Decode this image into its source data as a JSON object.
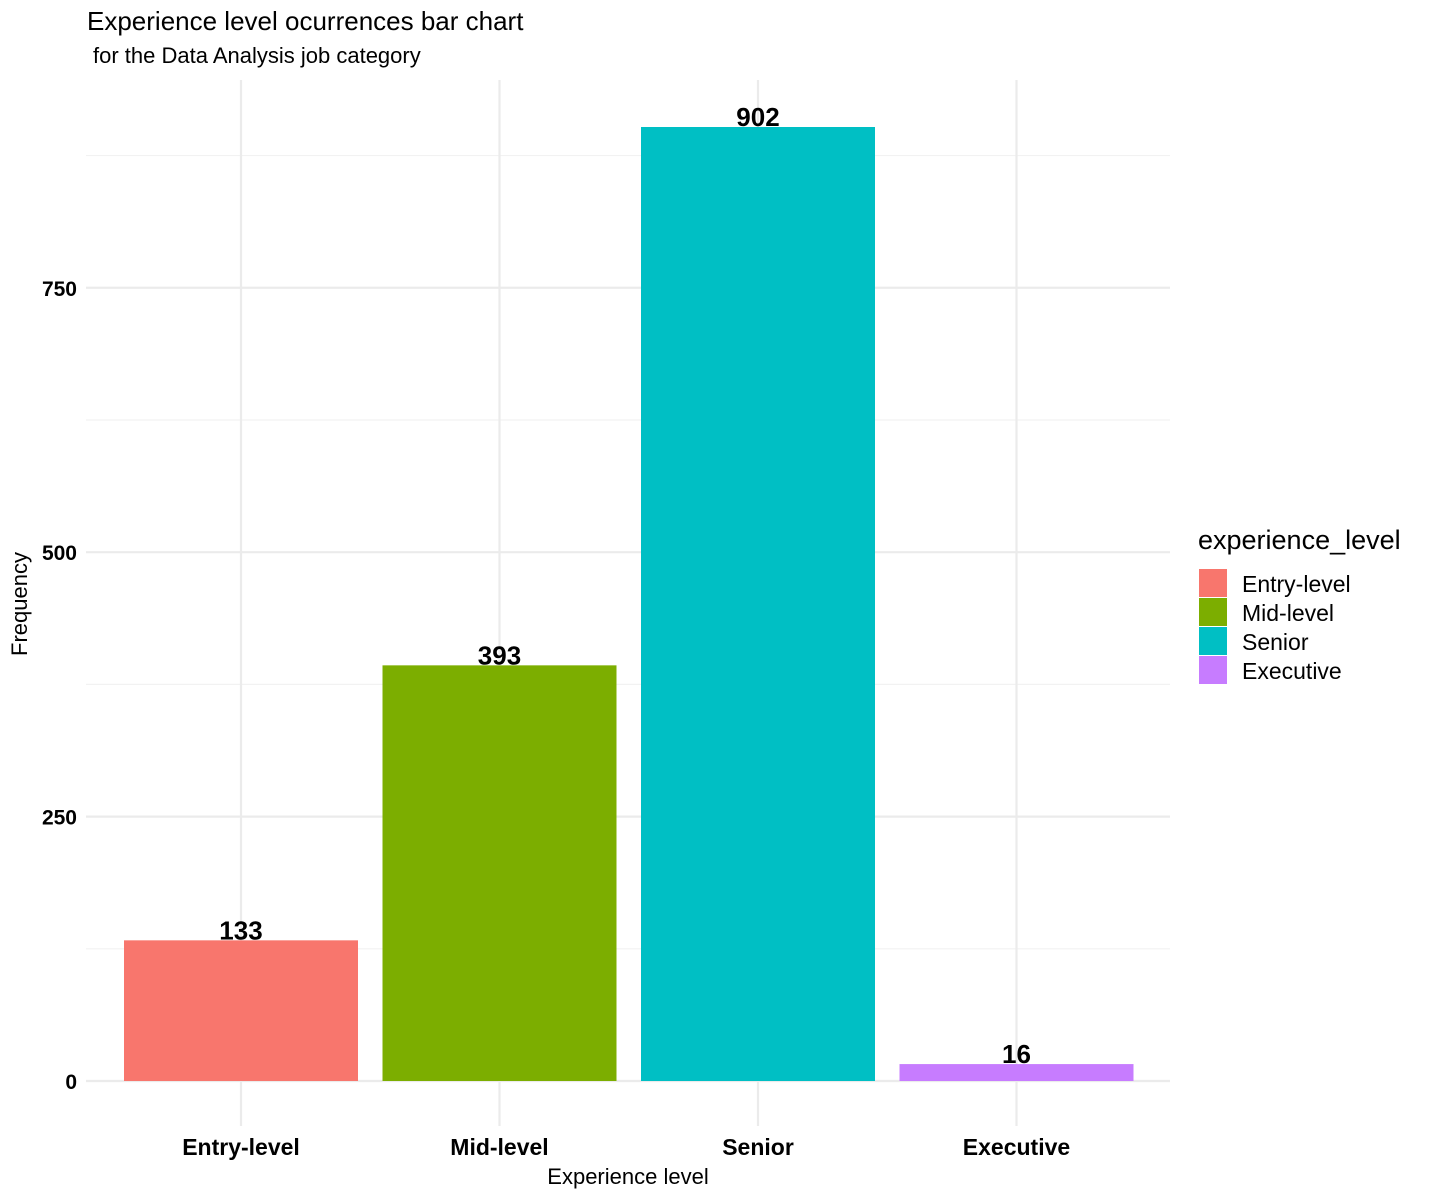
{
  "chart_data": {
    "type": "bar",
    "title": "Experience level ocurrences bar chart",
    "subtitle": "for the Data Analysis job category",
    "xlabel": "Experience level",
    "ylabel": "Frequency",
    "categories": [
      "Entry-level",
      "Mid-level",
      "Senior",
      "Executive"
    ],
    "values": [
      133,
      393,
      902,
      16
    ],
    "colors": [
      "#F8766D",
      "#7CAE00",
      "#00BFC4",
      "#C77CFF"
    ],
    "ylim": [
      0,
      902
    ],
    "y_ticks": [
      0,
      250,
      500,
      750
    ],
    "grid": true,
    "legend": {
      "title": "experience_level",
      "placement": "right",
      "entries": [
        "Entry-level",
        "Mid-level",
        "Senior",
        "Executive"
      ]
    }
  }
}
